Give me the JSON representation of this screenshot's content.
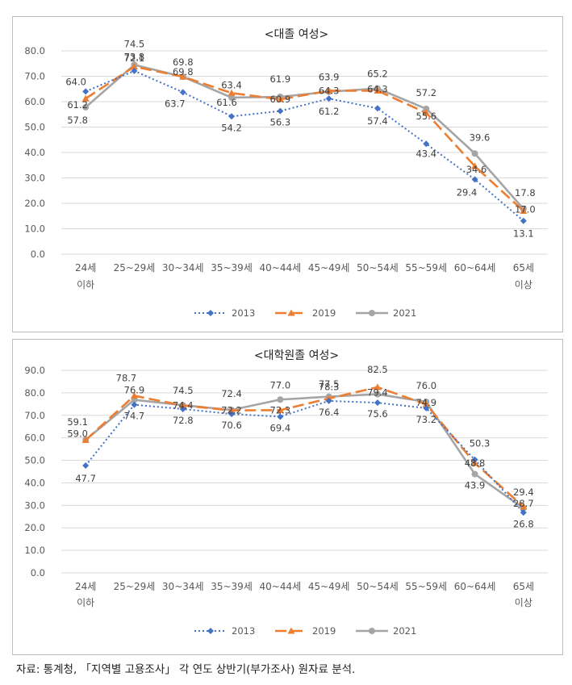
{
  "colors": {
    "s2013": "#4472c4",
    "s2019": "#ed7d31",
    "s2021": "#a5a5a5",
    "grid": "#d9d9d9",
    "axis_text": "#595959",
    "label_text": "#404040"
  },
  "source_note": "자료: 통계청, 「지역별 고용조사」 각 연도 상반기(부가조사) 원자료 분석.",
  "chart_data": [
    {
      "type": "line",
      "title": "<대졸 여성>",
      "categories": [
        [
          "24세",
          "이하"
        ],
        [
          "25~29세"
        ],
        [
          "30~34세"
        ],
        [
          "35~39세"
        ],
        [
          "40~44세"
        ],
        [
          "45~49세"
        ],
        [
          "50~54세"
        ],
        [
          "55~59세"
        ],
        [
          "60~64세"
        ],
        [
          "65세",
          "이상"
        ]
      ],
      "ylim": [
        0,
        80
      ],
      "yticks": [
        "0.0",
        "10.0",
        "20.0",
        "30.0",
        "40.0",
        "50.0",
        "60.0",
        "70.0",
        "80.0"
      ],
      "grid": true,
      "legend_position": "bottom",
      "series": [
        {
          "name": "2013",
          "values": [
            64.0,
            72.1,
            63.7,
            54.2,
            56.3,
            61.2,
            57.4,
            43.4,
            29.4,
            13.1
          ]
        },
        {
          "name": "2019",
          "values": [
            61.2,
            73.8,
            69.8,
            63.4,
            60.9,
            64.3,
            64.3,
            55.6,
            34.6,
            17.0
          ]
        },
        {
          "name": "2021",
          "values": [
            57.8,
            74.5,
            69.8,
            61.6,
            61.9,
            63.9,
            65.2,
            57.2,
            39.6,
            17.8
          ]
        }
      ],
      "data_labels": [
        {
          "text": "64.0"
        },
        {
          "text": "61.2"
        },
        {
          "text": "57.8"
        },
        {
          "text": "74.5"
        },
        {
          "text": "73.8"
        },
        {
          "text": "72.1"
        },
        {
          "text": "69.8"
        },
        {
          "text": "69.8"
        },
        {
          "text": "63.7"
        },
        {
          "text": "63.4"
        },
        {
          "text": "61.6"
        },
        {
          "text": "54.2"
        },
        {
          "text": "61.9"
        },
        {
          "text": "60.9"
        },
        {
          "text": "56.3"
        },
        {
          "text": "63.9"
        },
        {
          "text": "64.3"
        },
        {
          "text": "61.2"
        },
        {
          "text": "65.2"
        },
        {
          "text": "64.3"
        },
        {
          "text": "57.4"
        },
        {
          "text": "57.2"
        },
        {
          "text": "55.6"
        },
        {
          "text": "43.4"
        },
        {
          "text": "39.6"
        },
        {
          "text": "34.6"
        },
        {
          "text": "29.4"
        },
        {
          "text": "17.8"
        },
        {
          "text": "17.0"
        },
        {
          "text": "13.1"
        }
      ]
    },
    {
      "type": "line",
      "title": "<대학원졸 여성>",
      "categories": [
        [
          "24세",
          "이하"
        ],
        [
          "25~29세"
        ],
        [
          "30~34세"
        ],
        [
          "35~39세"
        ],
        [
          "40~44세"
        ],
        [
          "45~49세"
        ],
        [
          "50~54세"
        ],
        [
          "55~59세"
        ],
        [
          "60~64세"
        ],
        [
          "65세",
          "이상"
        ]
      ],
      "ylim": [
        0,
        90
      ],
      "yticks": [
        "0.0",
        "10.0",
        "20.0",
        "30.0",
        "40.0",
        "50.0",
        "60.0",
        "70.0",
        "80.0",
        "90.0"
      ],
      "grid": true,
      "legend_position": "bottom",
      "series": [
        {
          "name": "2013",
          "values": [
            47.7,
            74.7,
            72.8,
            70.6,
            69.4,
            76.4,
            75.6,
            73.2,
            50.3,
            26.8
          ]
        },
        {
          "name": "2019",
          "values": [
            59.0,
            78.7,
            74.4,
            72.2,
            72.3,
            77.5,
            82.5,
            74.9,
            48.8,
            29.4
          ]
        },
        {
          "name": "2021",
          "values": [
            59.1,
            76.9,
            74.5,
            72.4,
            77.0,
            78.3,
            79.4,
            76.0,
            43.9,
            28.7
          ]
        }
      ],
      "data_labels": [
        {
          "text": "59.1"
        },
        {
          "text": "59.0"
        },
        {
          "text": "47.7"
        },
        {
          "text": "78.7"
        },
        {
          "text": "76.9"
        },
        {
          "text": "74.7"
        },
        {
          "text": "74.5"
        },
        {
          "text": "74.4"
        },
        {
          "text": "72.8"
        },
        {
          "text": "72.4"
        },
        {
          "text": "72.2"
        },
        {
          "text": "70.6"
        },
        {
          "text": "77.0"
        },
        {
          "text": "72.3"
        },
        {
          "text": "69.4"
        },
        {
          "text": "78.3"
        },
        {
          "text": "77.5"
        },
        {
          "text": "76.4"
        },
        {
          "text": "82.5"
        },
        {
          "text": "79.4"
        },
        {
          "text": "75.6"
        },
        {
          "text": "76.0"
        },
        {
          "text": "74.9"
        },
        {
          "text": "73.2"
        },
        {
          "text": "50.3"
        },
        {
          "text": "48.8"
        },
        {
          "text": "43.9"
        },
        {
          "text": "29.4"
        },
        {
          "text": "28.7"
        },
        {
          "text": "26.8"
        }
      ]
    }
  ]
}
